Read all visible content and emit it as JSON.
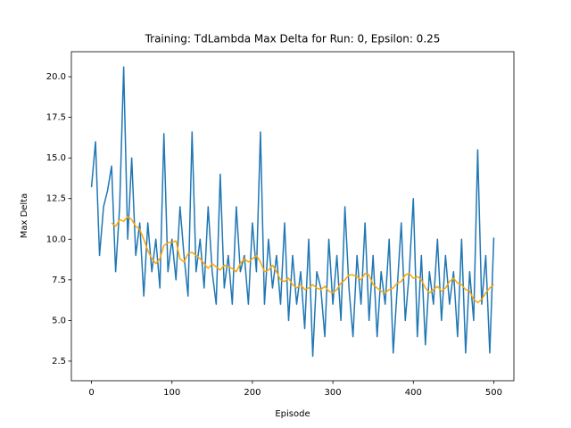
{
  "chart_data": {
    "type": "line",
    "title": "Training: TdLambda Max Delta for Run: 0, Epsilon: 0.25",
    "x_label": "Episode",
    "y_label": "Max Delta",
    "xlim": [
      -25,
      525
    ],
    "xticks": [
      0,
      100,
      200,
      300,
      400,
      500
    ],
    "ylim": [
      1.29,
      21.54
    ],
    "yticks": [
      {
        "value": 2.5,
        "label": "2.5"
      },
      {
        "value": 5,
        "label": "5.0"
      },
      {
        "value": 7.5,
        "label": "7.5"
      },
      {
        "value": 10,
        "label": "10.0"
      },
      {
        "value": 12.5,
        "label": "12.5"
      },
      {
        "value": 15,
        "label": "15.0"
      },
      {
        "value": 17.5,
        "label": "17.5"
      },
      {
        "value": 20,
        "label": "20.0"
      }
    ],
    "series": [
      {
        "color": "#1f77b4",
        "x": [
          0,
          5,
          10,
          15,
          20,
          25,
          30,
          35,
          40,
          45,
          50,
          55,
          60,
          65,
          70,
          75,
          80,
          85,
          90,
          95,
          100,
          105,
          110,
          115,
          120,
          125,
          130,
          135,
          140,
          145,
          150,
          155,
          160,
          165,
          170,
          175,
          180,
          185,
          190,
          195,
          200,
          205,
          210,
          215,
          220,
          225,
          230,
          235,
          240,
          245,
          250,
          255,
          260,
          265,
          270,
          275,
          280,
          285,
          290,
          295,
          300,
          305,
          310,
          315,
          320,
          325,
          330,
          335,
          340,
          345,
          350,
          355,
          360,
          365,
          370,
          375,
          380,
          385,
          390,
          395,
          400,
          405,
          410,
          415,
          420,
          425,
          430,
          435,
          440,
          445,
          450,
          455,
          460,
          465,
          470,
          475,
          480,
          485,
          490,
          495,
          500
        ],
        "values": [
          13.2,
          16,
          9,
          12,
          13,
          14.5,
          8,
          12,
          20.6,
          10,
          15,
          9,
          11,
          6.5,
          11,
          8,
          10,
          7,
          16.5,
          8,
          10,
          7.5,
          12,
          9,
          6.5,
          16.6,
          8,
          10,
          7,
          12,
          8,
          6,
          14,
          7,
          9,
          6,
          12,
          8,
          9,
          6,
          11,
          8,
          16.6,
          6,
          10,
          7,
          9,
          6,
          11,
          5,
          9,
          6,
          8,
          4.5,
          10,
          2.8,
          8,
          7,
          4,
          10,
          6,
          9,
          5,
          12,
          7,
          4,
          9,
          6,
          11,
          5,
          9,
          4,
          8,
          6,
          10,
          3,
          7,
          11,
          5,
          8,
          12.5,
          4,
          9,
          3.5,
          8,
          6,
          10,
          5,
          9,
          6,
          8,
          4,
          10,
          3,
          8,
          5,
          15.5,
          6,
          9,
          3,
          10.1
        ]
      },
      {
        "color": "#ffa500",
        "x": [
          25,
          30,
          35,
          40,
          45,
          50,
          55,
          60,
          65,
          70,
          75,
          80,
          85,
          90,
          95,
          100,
          105,
          110,
          115,
          120,
          125,
          130,
          135,
          140,
          145,
          150,
          155,
          160,
          165,
          170,
          175,
          180,
          185,
          190,
          195,
          200,
          205,
          210,
          215,
          220,
          225,
          230,
          235,
          240,
          245,
          250,
          255,
          260,
          265,
          270,
          275,
          280,
          285,
          290,
          295,
          300,
          305,
          310,
          315,
          320,
          325,
          330,
          335,
          340,
          345,
          350,
          355,
          360,
          365,
          370,
          375,
          380,
          385,
          390,
          395,
          400,
          405,
          410,
          415,
          420,
          425,
          430,
          435,
          440,
          445,
          450,
          455,
          460,
          465,
          470,
          475,
          480,
          485,
          490,
          495,
          500
        ],
        "values": [
          11,
          10.8,
          11.2,
          11.1,
          11.4,
          11.2,
          10.8,
          10.6,
          10,
          9.3,
          8.8,
          8.5,
          8.8,
          9.6,
          9.8,
          9.8,
          9.9,
          8.8,
          8.6,
          9.1,
          9.2,
          9.0,
          8.8,
          8.5,
          8.2,
          8.5,
          8.3,
          8.1,
          8.4,
          8.3,
          8.2,
          8.0,
          8.5,
          8.8,
          8.6,
          8.8,
          9.0,
          8.6,
          8.0,
          8.1,
          8.4,
          8.0,
          7.5,
          7.4,
          7.6,
          7.2,
          7.0,
          7.2,
          6.9,
          7.0,
          7.2,
          7.0,
          6.9,
          7.1,
          6.8,
          6.7,
          6.9,
          7.3,
          7.5,
          7.8,
          7.8,
          7.7,
          7.5,
          7.9,
          7.8,
          7.2,
          7.0,
          6.8,
          6.7,
          6.9,
          7.0,
          7.3,
          7.4,
          7.8,
          7.9,
          7.6,
          7.7,
          7.5,
          7.0,
          6.7,
          6.9,
          7.1,
          6.8,
          7.0,
          7.4,
          7.6,
          7.3,
          7.2,
          6.9,
          6.8,
          6.3,
          6.1,
          6.3,
          6.7,
          7.0,
          7.2
        ]
      }
    ]
  }
}
